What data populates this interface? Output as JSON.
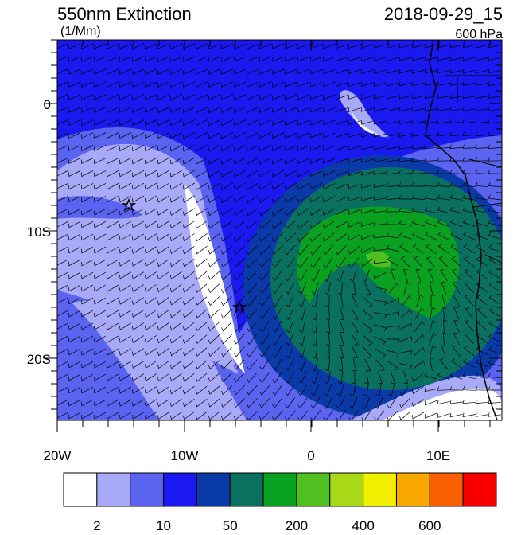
{
  "header": {
    "title": "550nm Extinction",
    "units": "(1/Mm)",
    "time": "2018-09-29_15",
    "level": "600 hPa"
  },
  "axes": {
    "y_labels": [
      "0",
      "10S",
      "20S"
    ],
    "x_labels": [
      "20W",
      "10W",
      "0",
      "10E"
    ]
  },
  "colorbar": {
    "colors": [
      "#ffffff",
      "#a8aaf8",
      "#5a64f0",
      "#1a1af0",
      "#0a3aa8",
      "#0a7060",
      "#0aa020",
      "#50c020",
      "#a8d818",
      "#f0f000",
      "#f8a800",
      "#f86000",
      "#f80000"
    ],
    "labels": [
      "2",
      "10",
      "50",
      "200",
      "400",
      "600"
    ]
  }
}
